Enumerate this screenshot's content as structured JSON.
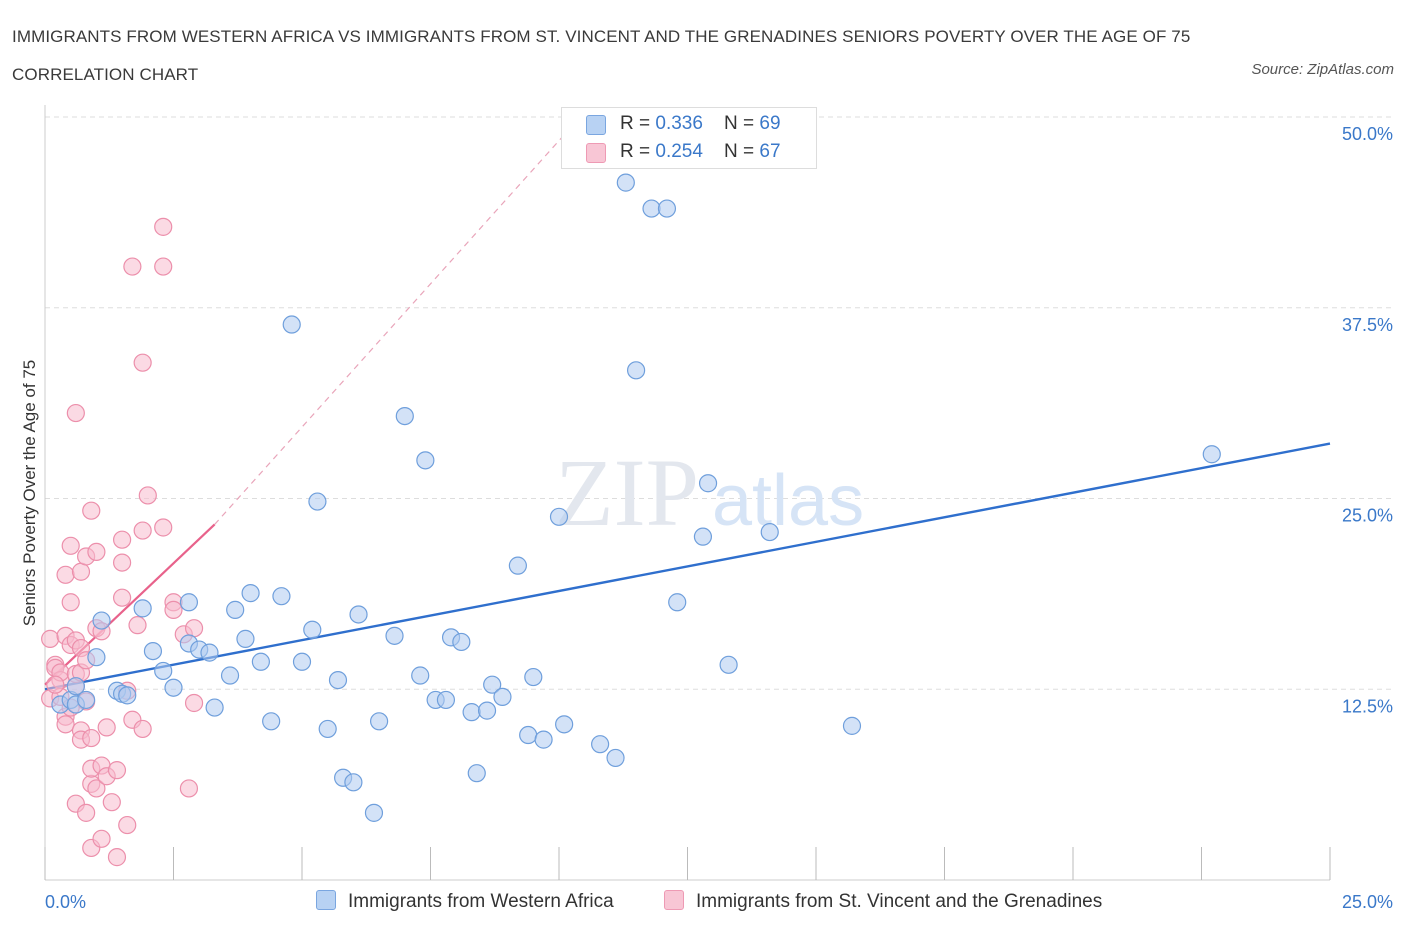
{
  "title": "IMMIGRANTS FROM WESTERN AFRICA VS IMMIGRANTS FROM ST. VINCENT AND THE GRENADINES SENIORS POVERTY OVER THE AGE OF 75 CORRELATION CHART",
  "source": "Source: ZipAtlas.com",
  "watermark": {
    "zip": "ZIP",
    "atlas": "atlas"
  },
  "legend": {
    "r_label": "R = ",
    "n_label": "N = ",
    "series1": {
      "r": "0.336",
      "n": "69"
    },
    "series2": {
      "r": "0.254",
      "n": "67"
    }
  },
  "colors": {
    "blue_fill": "#aecbf0",
    "blue_stroke": "#6f9fdc",
    "blue_line": "#2f6fcd",
    "pink_fill": "#f7bccd",
    "pink_stroke": "#ec8fab",
    "pink_line": "#e8628b",
    "tick_text": "#3a78c9",
    "grid": "#dddddd"
  },
  "chart_data": {
    "type": "scatter",
    "title": "IMMIGRANTS FROM WESTERN AFRICA VS IMMIGRANTS FROM ST. VINCENT AND THE GRENADINES SENIORS POVERTY OVER THE AGE OF 75 CORRELATION CHART",
    "xlabel": "",
    "ylabel": "Seniors Poverty Over the Age of 75",
    "xlim": [
      0,
      25
    ],
    "ylim": [
      0,
      50
    ],
    "x_tick_labels": [
      "0.0%",
      "25.0%"
    ],
    "y_ticks": [
      12.5,
      25.0,
      37.5,
      50.0
    ],
    "y_tick_labels": [
      "12.5%",
      "25.0%",
      "37.5%",
      "50.0%"
    ],
    "grid": "horizontal dashed",
    "series": [
      {
        "name": "Immigrants from Western Africa",
        "trend": {
          "x": [
            0,
            25
          ],
          "y": [
            12.5,
            28.6
          ]
        },
        "points": [
          [
            0.3,
            11.5
          ],
          [
            0.5,
            11.8
          ],
          [
            0.6,
            12.7
          ],
          [
            0.6,
            11.5
          ],
          [
            0.8,
            11.8
          ],
          [
            1.0,
            14.6
          ],
          [
            1.1,
            17.0
          ],
          [
            1.4,
            12.4
          ],
          [
            1.5,
            12.2
          ],
          [
            1.6,
            12.1
          ],
          [
            1.9,
            17.8
          ],
          [
            2.1,
            15.0
          ],
          [
            2.3,
            13.7
          ],
          [
            2.5,
            12.6
          ],
          [
            2.8,
            15.5
          ],
          [
            2.8,
            18.2
          ],
          [
            3.0,
            15.1
          ],
          [
            3.2,
            14.9
          ],
          [
            3.3,
            11.3
          ],
          [
            3.6,
            13.4
          ],
          [
            3.7,
            17.7
          ],
          [
            3.9,
            15.8
          ],
          [
            4.0,
            18.8
          ],
          [
            4.2,
            14.3
          ],
          [
            4.4,
            10.4
          ],
          [
            4.6,
            18.6
          ],
          [
            4.8,
            36.4
          ],
          [
            5.0,
            14.3
          ],
          [
            5.2,
            16.4
          ],
          [
            5.3,
            24.8
          ],
          [
            5.5,
            9.9
          ],
          [
            5.7,
            13.1
          ],
          [
            5.8,
            6.7
          ],
          [
            6.0,
            6.4
          ],
          [
            6.1,
            17.4
          ],
          [
            6.4,
            4.4
          ],
          [
            6.5,
            10.4
          ],
          [
            6.8,
            16.0
          ],
          [
            7.0,
            30.4
          ],
          [
            7.3,
            13.4
          ],
          [
            7.4,
            27.5
          ],
          [
            7.6,
            11.8
          ],
          [
            7.8,
            11.8
          ],
          [
            7.9,
            15.9
          ],
          [
            8.1,
            15.6
          ],
          [
            8.3,
            11.0
          ],
          [
            8.4,
            7.0
          ],
          [
            8.6,
            11.1
          ],
          [
            8.7,
            12.8
          ],
          [
            8.9,
            12.0
          ],
          [
            9.2,
            20.6
          ],
          [
            9.4,
            9.5
          ],
          [
            9.5,
            13.3
          ],
          [
            9.7,
            9.2
          ],
          [
            10.0,
            23.8
          ],
          [
            10.1,
            10.2
          ],
          [
            10.8,
            8.9
          ],
          [
            11.1,
            8.0
          ],
          [
            11.3,
            45.7
          ],
          [
            11.5,
            33.4
          ],
          [
            11.8,
            44.0
          ],
          [
            12.1,
            44.0
          ],
          [
            12.3,
            18.2
          ],
          [
            12.8,
            22.5
          ],
          [
            12.9,
            26.0
          ],
          [
            13.3,
            14.1
          ],
          [
            14.1,
            22.8
          ],
          [
            15.7,
            10.1
          ],
          [
            22.7,
            27.9
          ]
        ]
      },
      {
        "name": "Immigrants from St. Vincent and the Grenadines",
        "trend": {
          "x": [
            0,
            3.3
          ],
          "y": [
            12.8,
            23.3
          ]
        },
        "trend_dashed_extension": {
          "x": [
            3.3,
            10.2
          ],
          "y": [
            23.3,
            49.2
          ]
        },
        "points": [
          [
            0.1,
            11.9
          ],
          [
            0.1,
            15.8
          ],
          [
            0.2,
            14.1
          ],
          [
            0.2,
            13.9
          ],
          [
            0.3,
            13.1
          ],
          [
            0.3,
            13.6
          ],
          [
            0.3,
            12.0
          ],
          [
            0.4,
            16.0
          ],
          [
            0.4,
            10.7
          ],
          [
            0.4,
            20.0
          ],
          [
            0.4,
            10.2
          ],
          [
            0.5,
            15.4
          ],
          [
            0.5,
            21.9
          ],
          [
            0.5,
            18.2
          ],
          [
            0.6,
            15.7
          ],
          [
            0.6,
            12.7
          ],
          [
            0.6,
            13.5
          ],
          [
            0.6,
            5.0
          ],
          [
            0.6,
            30.6
          ],
          [
            0.7,
            9.8
          ],
          [
            0.7,
            15.2
          ],
          [
            0.7,
            13.6
          ],
          [
            0.7,
            20.2
          ],
          [
            0.7,
            9.2
          ],
          [
            0.8,
            11.7
          ],
          [
            0.8,
            14.4
          ],
          [
            0.8,
            4.4
          ],
          [
            0.8,
            21.2
          ],
          [
            0.9,
            9.3
          ],
          [
            0.9,
            6.3
          ],
          [
            0.9,
            7.3
          ],
          [
            0.9,
            2.1
          ],
          [
            0.9,
            24.2
          ],
          [
            1.0,
            6.0
          ],
          [
            1.0,
            16.5
          ],
          [
            1.0,
            21.5
          ],
          [
            1.1,
            7.5
          ],
          [
            1.1,
            16.3
          ],
          [
            1.1,
            2.7
          ],
          [
            1.2,
            6.8
          ],
          [
            1.3,
            5.1
          ],
          [
            1.4,
            7.2
          ],
          [
            1.4,
            1.5
          ],
          [
            1.5,
            18.5
          ],
          [
            1.5,
            20.8
          ],
          [
            1.5,
            22.3
          ],
          [
            1.6,
            3.6
          ],
          [
            1.6,
            12.4
          ],
          [
            1.7,
            40.2
          ],
          [
            1.7,
            10.5
          ],
          [
            1.8,
            16.7
          ],
          [
            1.9,
            9.9
          ],
          [
            1.9,
            33.9
          ],
          [
            1.9,
            22.9
          ],
          [
            2.0,
            25.2
          ],
          [
            2.3,
            23.1
          ],
          [
            2.3,
            40.2
          ],
          [
            2.3,
            42.8
          ],
          [
            2.5,
            18.2
          ],
          [
            2.5,
            17.7
          ],
          [
            2.7,
            16.1
          ],
          [
            2.8,
            6.0
          ],
          [
            2.9,
            16.5
          ],
          [
            2.9,
            11.6
          ],
          [
            0.2,
            12.8
          ],
          [
            0.5,
            11.3
          ],
          [
            1.2,
            10.0
          ]
        ]
      }
    ]
  },
  "bottom_legend": [
    "Immigrants from Western Africa",
    "Immigrants from St. Vincent and the Grenadines"
  ]
}
